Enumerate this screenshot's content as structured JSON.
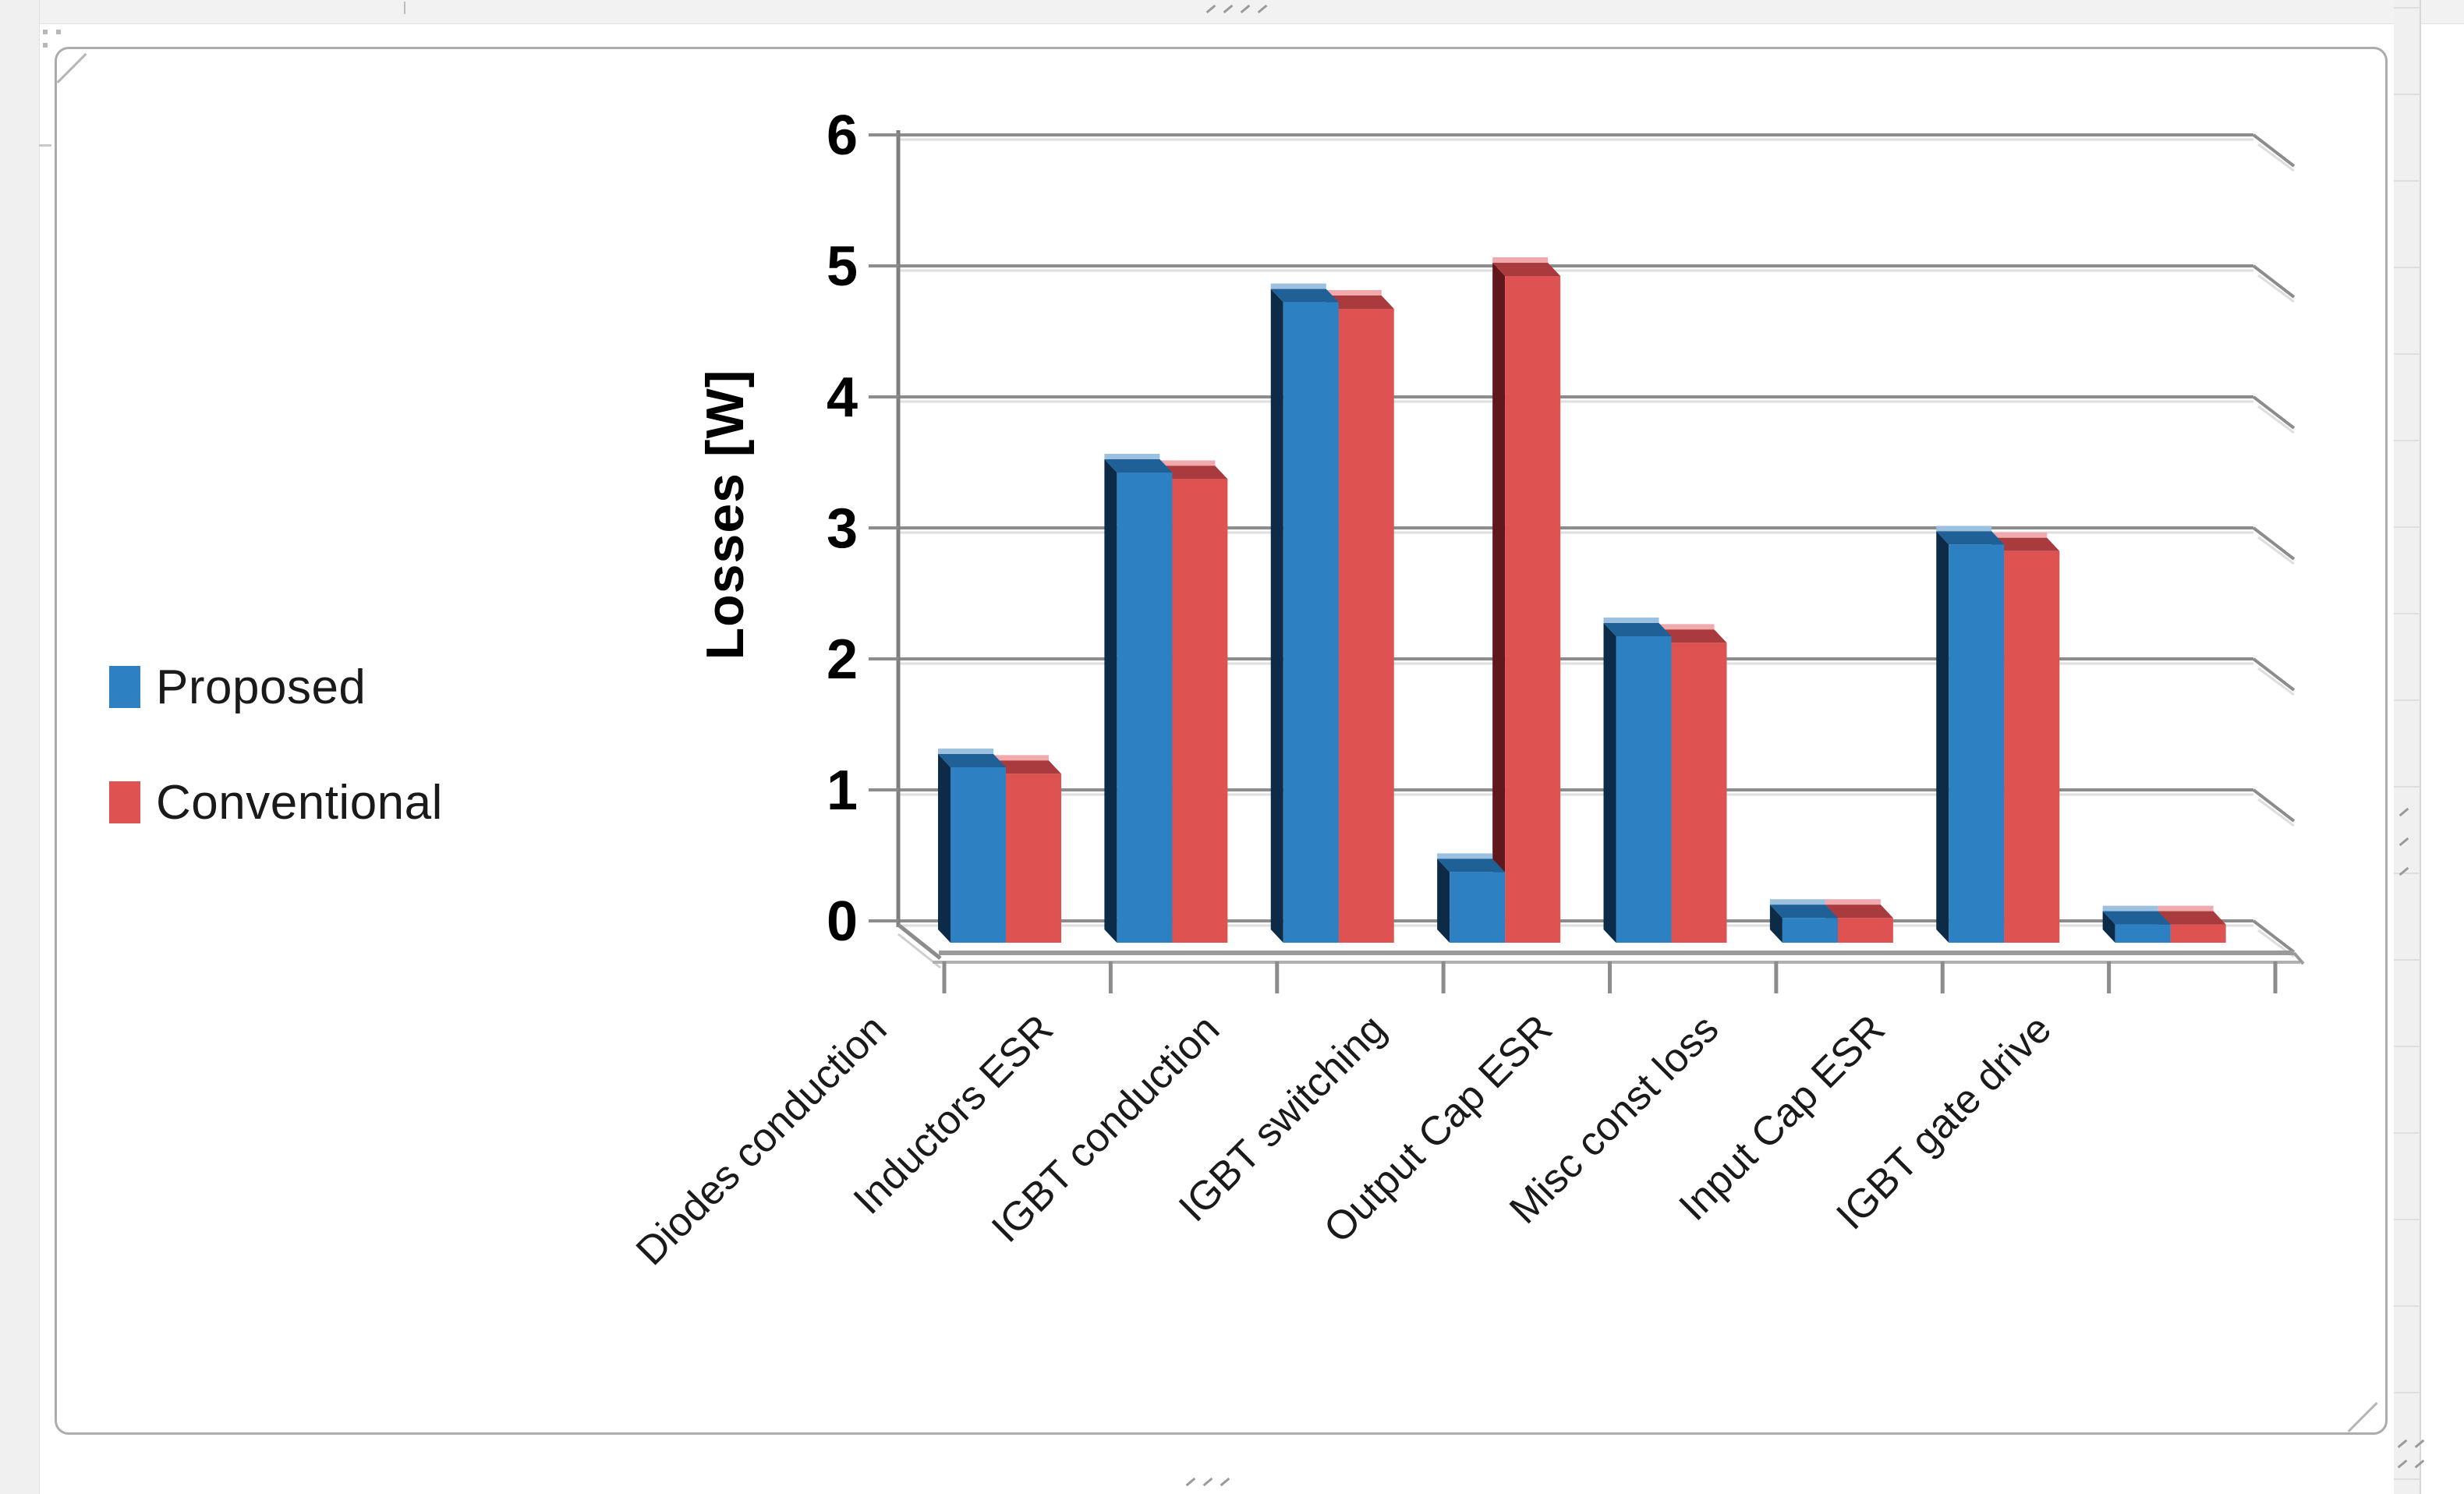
{
  "chart_data": {
    "type": "bar",
    "style": "3d-clustered-column",
    "title": "",
    "xlabel": "",
    "ylabel": "Losses [W]",
    "ylim": [
      0,
      6
    ],
    "yticks": [
      0,
      1,
      2,
      3,
      4,
      5,
      6
    ],
    "grid": true,
    "legend_position": "left-middle",
    "categories": [
      "Diodes conduction",
      "Inductors ESR",
      "IGBT conduction",
      "IGBT switching",
      "Output Cap ESR",
      "Misc const loss",
      "Input Cap ESR",
      "IGBT gate drive"
    ],
    "series": [
      {
        "name": "Proposed",
        "color": "#2D81C2",
        "values": [
          1.25,
          3.5,
          4.8,
          0.45,
          2.25,
          0.1,
          2.95,
          0.05
        ]
      },
      {
        "name": "Conventional",
        "color": "#DE5352",
        "values": [
          1.2,
          3.45,
          4.75,
          5.0,
          2.2,
          0.1,
          2.9,
          0.05
        ]
      }
    ]
  },
  "colors": {
    "grid": "#8C8C8C",
    "grid_echo": "#DEDEDE",
    "axis": "#7F7F7F",
    "frame_border": "#ACACAC",
    "text": "#1A1A1A"
  }
}
